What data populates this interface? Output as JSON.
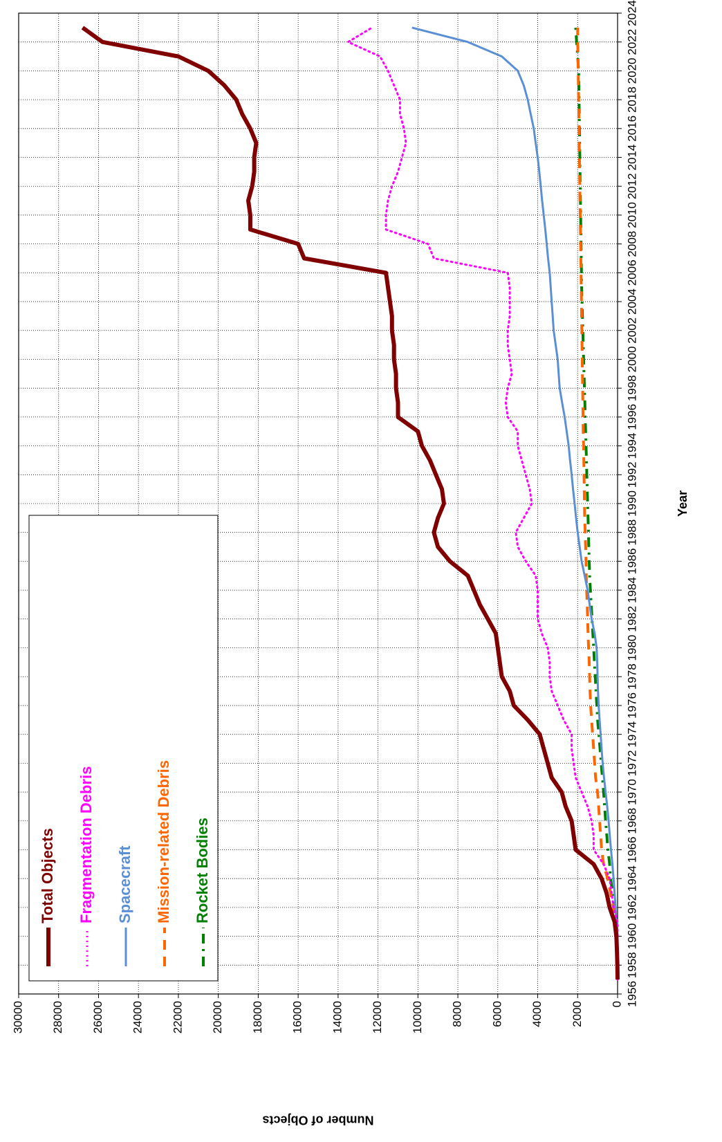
{
  "chart_data": {
    "type": "line",
    "xlabel": "Year",
    "ylabel": "Number of Objects",
    "xlim": [
      1956,
      2024
    ],
    "ylim": [
      0,
      30000
    ],
    "xticks": [
      1956,
      1958,
      1960,
      1962,
      1964,
      1966,
      1968,
      1970,
      1972,
      1974,
      1976,
      1978,
      1980,
      1982,
      1984,
      1986,
      1988,
      1990,
      1992,
      1994,
      1996,
      1998,
      2000,
      2002,
      2004,
      2006,
      2008,
      2010,
      2012,
      2014,
      2016,
      2018,
      2020,
      2022,
      2024
    ],
    "yticks": [
      0,
      2000,
      4000,
      6000,
      8000,
      10000,
      12000,
      14000,
      16000,
      18000,
      20000,
      22000,
      24000,
      26000,
      28000,
      30000
    ],
    "grid": true,
    "legend": "upper left",
    "x": [
      1957,
      1958,
      1959,
      1960,
      1961,
      1962,
      1963,
      1964,
      1965,
      1966,
      1967,
      1968,
      1969,
      1970,
      1971,
      1972,
      1973,
      1974,
      1975,
      1976,
      1977,
      1978,
      1979,
      1980,
      1981,
      1982,
      1983,
      1984,
      1985,
      1986,
      1987,
      1988,
      1989,
      1990,
      1991,
      1992,
      1993,
      1994,
      1995,
      1996,
      1997,
      1998,
      1999,
      2000,
      2001,
      2002,
      2003,
      2004,
      2005,
      2006,
      2007,
      2008,
      2009,
      2010,
      2011,
      2012,
      2013,
      2014,
      2015,
      2016,
      2017,
      2018,
      2019,
      2020,
      2021,
      2022,
      2023
    ],
    "series": [
      {
        "name": "Total Objects",
        "color": "#800000",
        "dash": "solid",
        "width": 6,
        "values": [
          0,
          10,
          30,
          60,
          150,
          400,
          550,
          800,
          1200,
          2100,
          2200,
          2300,
          2600,
          2800,
          3300,
          3500,
          3700,
          3900,
          4500,
          5200,
          5400,
          5800,
          5900,
          6000,
          6100,
          6500,
          6900,
          7200,
          7500,
          8400,
          9000,
          9200,
          9000,
          8700,
          8800,
          9100,
          9400,
          9800,
          10000,
          11000,
          11000,
          11100,
          11100,
          11200,
          11200,
          11300,
          11300,
          11400,
          11500,
          11600,
          15700,
          16000,
          18400,
          18400,
          18500,
          18300,
          18200,
          18200,
          18100,
          18400,
          18800,
          19100,
          19700,
          20500,
          22000,
          25800,
          26800
        ]
      },
      {
        "name": "Fragmentation Debris",
        "color": "#ff00ff",
        "dash": "dotted",
        "width": 3,
        "values": [
          0,
          0,
          0,
          0,
          0,
          200,
          300,
          400,
          700,
          1200,
          1200,
          1300,
          1500,
          1800,
          2100,
          2200,
          2300,
          2300,
          2700,
          3000,
          3300,
          3400,
          3400,
          3500,
          3800,
          4000,
          4000,
          4000,
          4100,
          4600,
          5000,
          5100,
          4700,
          4300,
          4400,
          4600,
          4800,
          5000,
          5000,
          5500,
          5600,
          5500,
          5300,
          5400,
          5500,
          5500,
          5400,
          5400,
          5400,
          5500,
          9200,
          9500,
          11600,
          11600,
          11500,
          11300,
          11000,
          10800,
          10600,
          10700,
          10900,
          10900,
          11200,
          11500,
          11900,
          13500,
          12300
        ]
      },
      {
        "name": "Spacecraft",
        "color": "#5b8fd5",
        "dash": "solid",
        "width": 3,
        "values": [
          0,
          10,
          20,
          40,
          60,
          100,
          150,
          200,
          260,
          330,
          390,
          450,
          520,
          600,
          680,
          750,
          800,
          850,
          900,
          950,
          980,
          1000,
          1020,
          1050,
          1150,
          1300,
          1400,
          1500,
          1650,
          1800,
          1900,
          2000,
          2080,
          2150,
          2230,
          2300,
          2380,
          2450,
          2550,
          2650,
          2780,
          2900,
          2950,
          3000,
          3100,
          3200,
          3250,
          3300,
          3350,
          3400,
          3480,
          3550,
          3620,
          3700,
          3780,
          3850,
          3920,
          4000,
          4100,
          4200,
          4350,
          4500,
          4700,
          5000,
          5800,
          7500,
          10300
        ]
      },
      {
        "name": "Mission-related Debris",
        "color": "#ff6600",
        "dash": "dashed",
        "width": 4,
        "values": [
          0,
          10,
          20,
          30,
          100,
          200,
          350,
          500,
          700,
          800,
          850,
          900,
          950,
          1000,
          1100,
          1150,
          1200,
          1250,
          1300,
          1350,
          1380,
          1400,
          1420,
          1450,
          1480,
          1500,
          1520,
          1550,
          1570,
          1580,
          1600,
          1620,
          1650,
          1660,
          1670,
          1680,
          1690,
          1700,
          1720,
          1730,
          1740,
          1750,
          1760,
          1770,
          1780,
          1790,
          1800,
          1810,
          1820,
          1830,
          1840,
          1850,
          1860,
          1870,
          1880,
          1890,
          1900,
          1910,
          1920,
          1930,
          1940,
          1950,
          1960,
          1970,
          1980,
          2000,
          2000
        ]
      },
      {
        "name": "Rocket Bodies",
        "color": "#008000",
        "dash": "dashdot",
        "width": 4,
        "values": [
          1,
          5,
          10,
          20,
          60,
          150,
          250,
          350,
          400,
          480,
          540,
          600,
          650,
          700,
          760,
          820,
          880,
          940,
          1000,
          1040,
          1080,
          1120,
          1160,
          1200,
          1240,
          1280,
          1320,
          1360,
          1400,
          1420,
          1440,
          1460,
          1480,
          1500,
          1520,
          1540,
          1560,
          1580,
          1600,
          1620,
          1640,
          1660,
          1680,
          1700,
          1720,
          1740,
          1760,
          1780,
          1800,
          1810,
          1820,
          1830,
          1840,
          1850,
          1860,
          1870,
          1880,
          1890,
          1900,
          1910,
          1920,
          1930,
          1940,
          1950,
          2000,
          2050,
          2100
        ]
      }
    ]
  }
}
